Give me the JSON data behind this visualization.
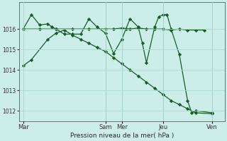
{
  "background_color": "#cceee8",
  "grid_color": "#aad8d0",
  "line_color": "#1a5c28",
  "marker_color": "#1a5c28",
  "xlabel": "Pression niveau de la mer( hPa )",
  "ylim": [
    1011.5,
    1017.3
  ],
  "yticks": [
    1012,
    1013,
    1014,
    1015,
    1016
  ],
  "xtick_labels": [
    "Mar",
    "Sam",
    "Mer",
    "Jeu",
    "Ven"
  ],
  "xtick_positions": [
    0,
    10,
    12,
    17,
    23
  ],
  "series_flat": [
    [
      0,
      1016.0
    ],
    [
      2,
      1016.0
    ],
    [
      4,
      1016.0
    ],
    [
      6,
      1016.0
    ],
    [
      8,
      1016.0
    ],
    [
      10,
      1016.0
    ],
    [
      11,
      1016.0
    ],
    [
      12,
      1016.05
    ],
    [
      13,
      1016.0
    ],
    [
      14,
      1016.05
    ],
    [
      15,
      1016.0
    ],
    [
      16,
      1016.0
    ],
    [
      17,
      1016.0
    ],
    [
      18,
      1015.95
    ],
    [
      19,
      1016.0
    ],
    [
      20,
      1015.95
    ],
    [
      21,
      1015.95
    ],
    [
      22,
      1015.95
    ]
  ],
  "series_wavy": [
    [
      0,
      1016.0
    ],
    [
      1,
      1016.7
    ],
    [
      2,
      1016.2
    ],
    [
      3,
      1016.25
    ],
    [
      3.5,
      1016.1
    ],
    [
      4,
      1016.0
    ],
    [
      5,
      1015.75
    ],
    [
      6,
      1015.75
    ],
    [
      7,
      1015.75
    ],
    [
      8,
      1016.5
    ],
    [
      9,
      1016.1
    ],
    [
      10,
      1015.8
    ],
    [
      11,
      1014.8
    ],
    [
      12,
      1015.5
    ],
    [
      12.5,
      1016.0
    ],
    [
      13,
      1016.5
    ],
    [
      14,
      1016.1
    ],
    [
      14.5,
      1015.3
    ],
    [
      15,
      1014.35
    ],
    [
      16,
      1016.1
    ],
    [
      16.5,
      1016.6
    ],
    [
      17,
      1016.7
    ],
    [
      17.5,
      1016.7
    ],
    [
      18,
      1016.0
    ],
    [
      19,
      1014.75
    ],
    [
      20,
      1012.5
    ],
    [
      20.5,
      1011.9
    ],
    [
      21,
      1012.0
    ],
    [
      23,
      1011.9
    ]
  ],
  "series_diag": [
    [
      0,
      1014.2
    ],
    [
      1,
      1014.5
    ],
    [
      3,
      1015.5
    ],
    [
      4,
      1015.8
    ],
    [
      5,
      1015.95
    ],
    [
      6,
      1015.7
    ],
    [
      7,
      1015.5
    ],
    [
      8,
      1015.3
    ],
    [
      9,
      1015.1
    ],
    [
      10,
      1014.9
    ],
    [
      11,
      1014.6
    ],
    [
      12,
      1014.3
    ],
    [
      13,
      1014.0
    ],
    [
      14,
      1013.7
    ],
    [
      15,
      1013.4
    ],
    [
      16,
      1013.1
    ],
    [
      17,
      1012.8
    ],
    [
      18,
      1012.5
    ],
    [
      19,
      1012.3
    ],
    [
      20,
      1012.1
    ],
    [
      21,
      1011.9
    ],
    [
      23,
      1011.85
    ]
  ],
  "vline_positions": [
    10,
    12,
    17,
    23
  ]
}
